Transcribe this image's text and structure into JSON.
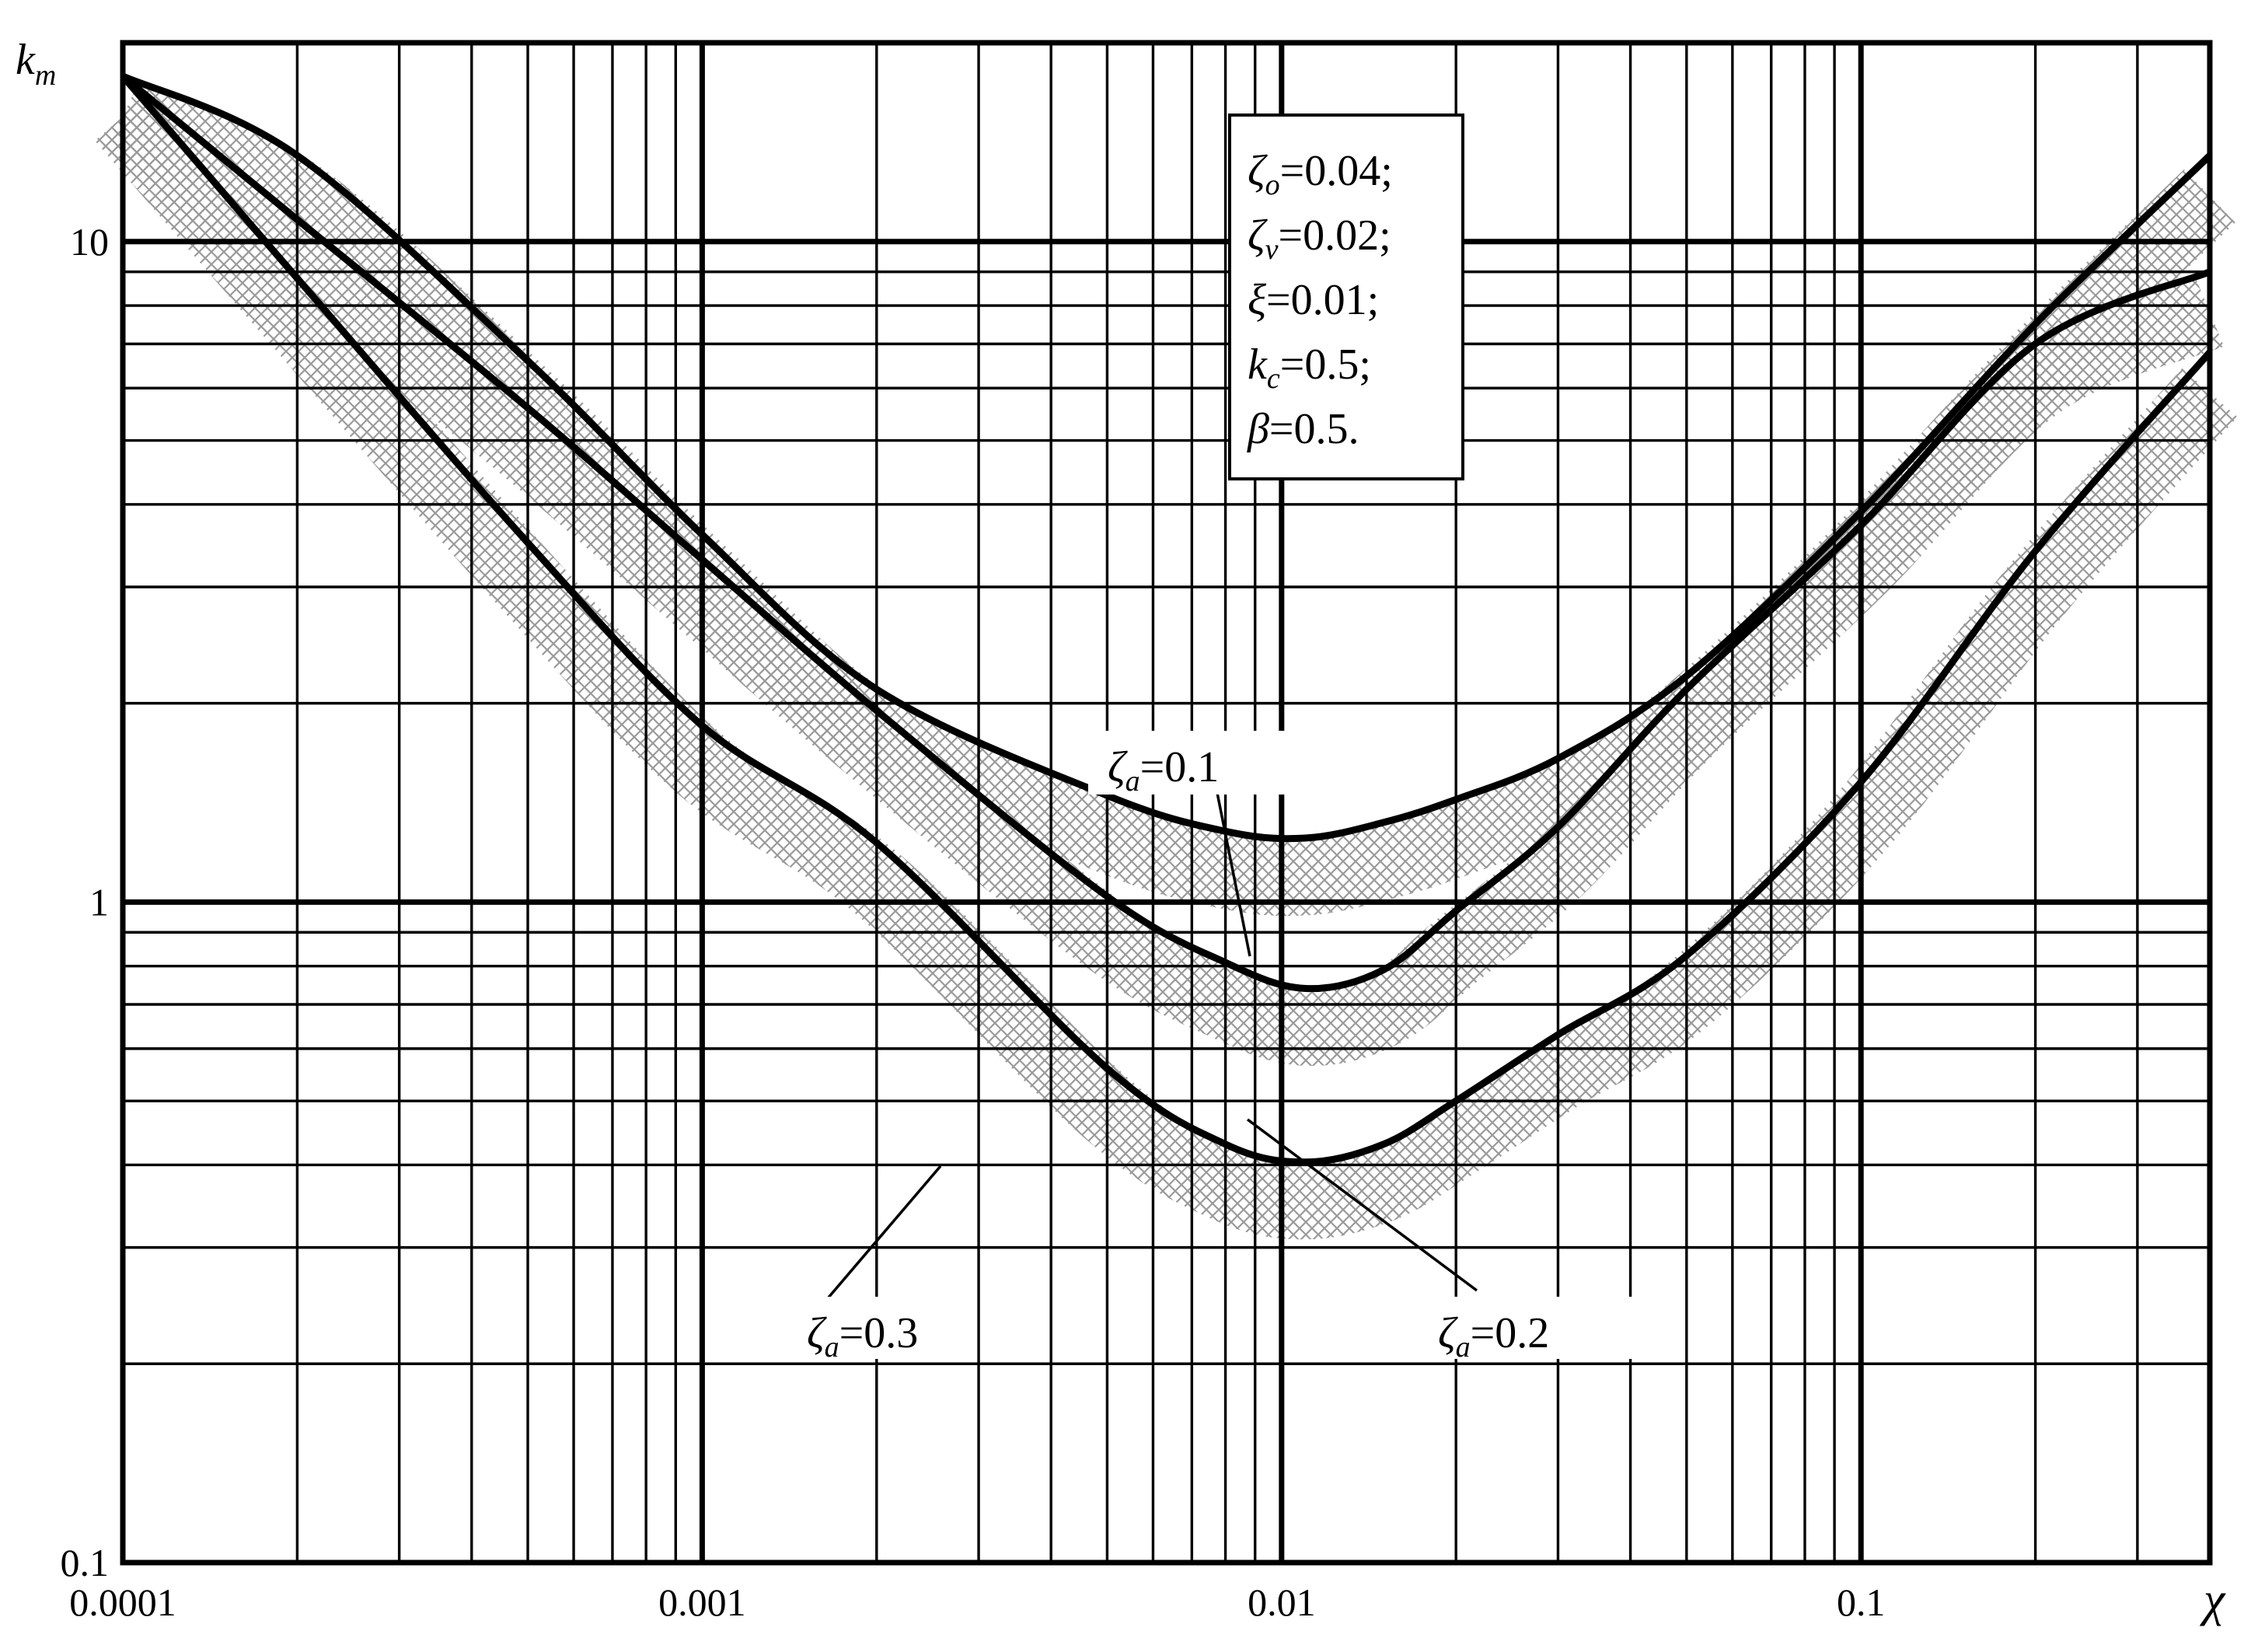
{
  "chart_data": {
    "type": "line",
    "title": "",
    "xlabel": "χ",
    "ylabel": "k",
    "ylabel_sub": "m",
    "x_scale": "log",
    "y_scale": "log",
    "xlim": [
      0.0001,
      0.4
    ],
    "ylim": [
      0.1,
      20
    ],
    "grid": true,
    "x_ticks": [
      {
        "value": 0.0001,
        "label": "0.0001"
      },
      {
        "value": 0.001,
        "label": "0.001"
      },
      {
        "value": 0.01,
        "label": "0.01"
      },
      {
        "value": 0.1,
        "label": "0.1"
      }
    ],
    "y_ticks": [
      {
        "value": 0.1,
        "label": "0.1"
      },
      {
        "value": 1,
        "label": "1"
      },
      {
        "value": 10,
        "label": "10"
      }
    ],
    "parameters": [
      {
        "sym": "ζ",
        "sub": "o",
        "rest": "=0.04;"
      },
      {
        "sym": "ζ",
        "sub": "v",
        "rest": "=0.02;"
      },
      {
        "sym": "ξ",
        "sub": "",
        "rest": "=0.01;"
      },
      {
        "sym": "k",
        "sub": "c",
        "rest": "=0.5;"
      },
      {
        "sym": "β",
        "sub": "",
        "rest": "=0.5."
      }
    ],
    "series": [
      {
        "name_sym": "ζ",
        "name_sub": "a",
        "name_rest": "=0.3",
        "x": [
          0.0001,
          0.0002,
          0.0005,
          0.001,
          0.002,
          0.005,
          0.008,
          0.011,
          0.015,
          0.02,
          0.03,
          0.05,
          0.1,
          0.2,
          0.4
        ],
        "y": [
          17.8,
          8.8,
          3.5,
          1.85,
          1.23,
          0.56,
          0.43,
          0.404,
          0.43,
          0.5,
          0.63,
          0.83,
          1.52,
          3.4,
          6.8
        ]
      },
      {
        "name_sym": "ζ",
        "name_sub": "a",
        "name_rest": "=0.2",
        "x": [
          0.0001,
          0.0002,
          0.0005,
          0.001,
          0.002,
          0.005,
          0.008,
          0.011,
          0.015,
          0.02,
          0.03,
          0.05,
          0.1,
          0.2,
          0.4
        ],
        "y": [
          17.8,
          10.8,
          5.6,
          3.3,
          1.95,
          1.02,
          0.81,
          0.74,
          0.79,
          0.97,
          1.3,
          2.1,
          3.72,
          7.0,
          9.0
        ]
      },
      {
        "name_sym": "ζ",
        "name_sub": "a",
        "name_rest": "=0.1",
        "x": [
          0.0001,
          0.0002,
          0.0005,
          0.001,
          0.002,
          0.005,
          0.008,
          0.011,
          0.015,
          0.02,
          0.03,
          0.05,
          0.1,
          0.2,
          0.4
        ],
        "y": [
          17.8,
          13.5,
          6.6,
          3.6,
          2.1,
          1.45,
          1.28,
          1.25,
          1.32,
          1.43,
          1.65,
          2.2,
          3.9,
          7.5,
          13.5
        ]
      }
    ],
    "band_shading": true
  }
}
